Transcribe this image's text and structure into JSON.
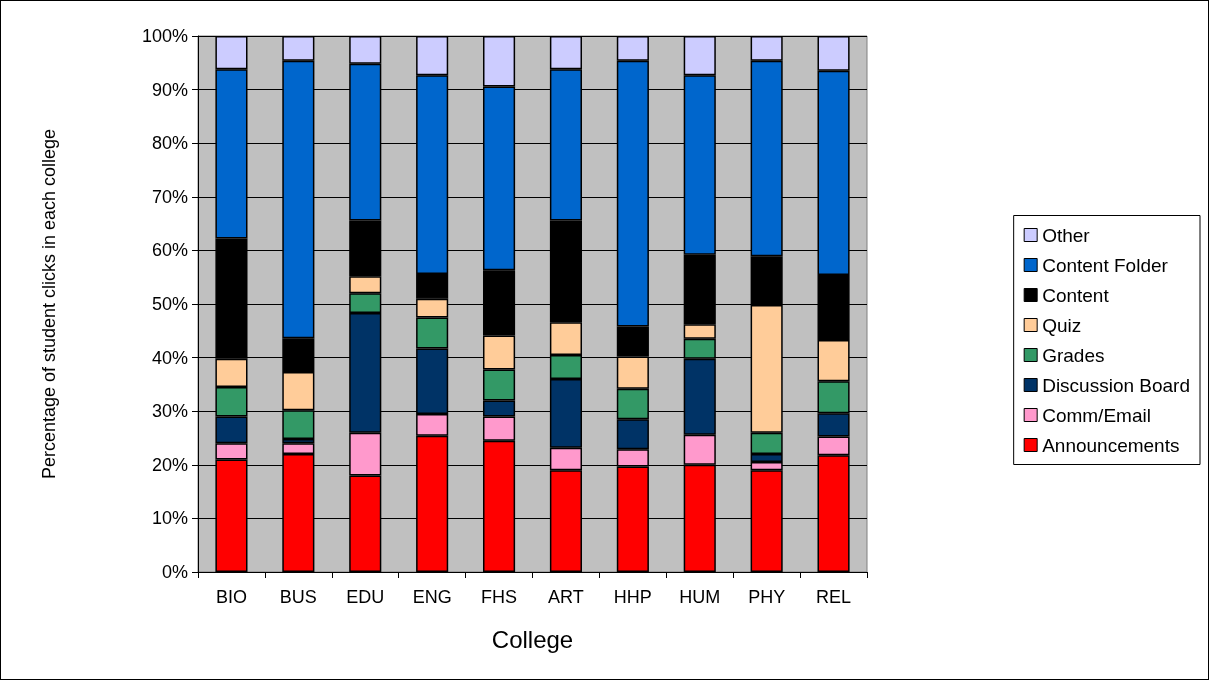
{
  "chart_data": {
    "type": "bar",
    "stacked": true,
    "xlabel": "College",
    "ylabel": "Percentage of student clicks in each college",
    "categories": [
      "BIO",
      "BUS",
      "EDU",
      "ENG",
      "FHS",
      "ART",
      "HHP",
      "HUM",
      "PHY",
      "REL"
    ],
    "series": [
      {
        "name": "Announcements",
        "color": "#ff0000",
        "values": [
          21,
          22,
          18,
          25.4,
          24.5,
          19,
          19.7,
          20,
          19,
          21.8
        ]
      },
      {
        "name": "Comm/Email",
        "color": "#ff99cc",
        "values": [
          3,
          2,
          8,
          4.1,
          4.5,
          4.2,
          3.2,
          5.6,
          1.5,
          3.5
        ]
      },
      {
        "name": "Discussion Board",
        "color": "#003366",
        "values": [
          5,
          0.8,
          22.3,
          12.2,
          3,
          12.8,
          5.6,
          14.2,
          1.5,
          4.3
        ]
      },
      {
        "name": "Grades",
        "color": "#339966",
        "values": [
          5.5,
          5.4,
          3.7,
          5.8,
          5.8,
          4.5,
          5.7,
          3.7,
          4,
          6
        ]
      },
      {
        "name": "Quiz",
        "color": "#ffcc99",
        "values": [
          5.3,
          7.1,
          3.2,
          3.5,
          6.3,
          6.1,
          6,
          2.7,
          23.8,
          7.7
        ]
      },
      {
        "name": "Content",
        "color": "#000000",
        "values": [
          22.4,
          6.3,
          10.4,
          4.6,
          12.2,
          19,
          5.6,
          13,
          9.1,
          12.1
        ]
      },
      {
        "name": "Content Folder",
        "color": "#0066cc",
        "values": [
          31.6,
          51.8,
          29.2,
          37.1,
          34.3,
          28.2,
          49.6,
          33.5,
          36.5,
          38.1
        ]
      },
      {
        "name": "Other",
        "color": "#ccccff",
        "values": [
          6.2,
          4.6,
          5.2,
          7.3,
          9.4,
          6.2,
          4.6,
          7.3,
          4.6,
          6.5
        ]
      }
    ],
    "ylim": [
      0,
      100
    ],
    "yticks": [
      {
        "value": 0,
        "label": "0%"
      },
      {
        "value": 10,
        "label": "10%"
      },
      {
        "value": 20,
        "label": "20%"
      },
      {
        "value": 30,
        "label": "30%"
      },
      {
        "value": 40,
        "label": "40%"
      },
      {
        "value": 50,
        "label": "50%"
      },
      {
        "value": 60,
        "label": "60%"
      },
      {
        "value": 70,
        "label": "70%"
      },
      {
        "value": 80,
        "label": "80%"
      },
      {
        "value": 90,
        "label": "90%"
      },
      {
        "value": 100,
        "label": "100%"
      }
    ],
    "grid": "y",
    "legend": "right"
  }
}
